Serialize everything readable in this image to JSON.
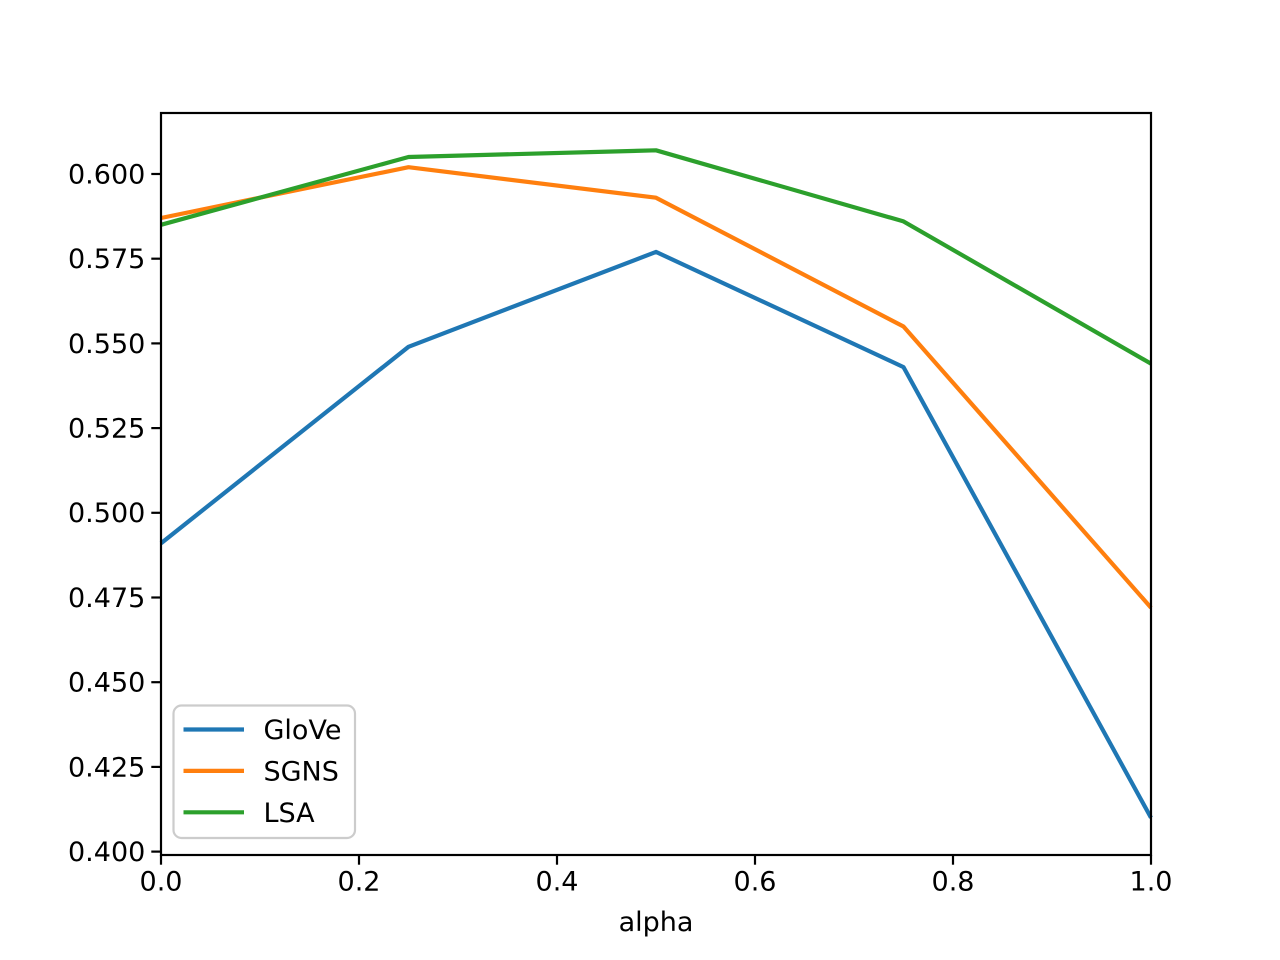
{
  "chart_data": {
    "type": "line",
    "title": "",
    "xlabel": "alpha",
    "ylabel": "",
    "x": [
      0.0,
      0.25,
      0.5,
      0.75,
      1.0
    ],
    "series": [
      {
        "name": "GloVe",
        "color": "#1f77b4",
        "values": [
          0.491,
          0.549,
          0.577,
          0.543,
          0.41
        ]
      },
      {
        "name": "SGNS",
        "color": "#ff7f0e",
        "values": [
          0.587,
          0.602,
          0.593,
          0.555,
          0.472
        ]
      },
      {
        "name": "LSA",
        "color": "#2ca02c",
        "values": [
          0.585,
          0.605,
          0.607,
          0.586,
          0.544
        ]
      }
    ],
    "xlim": [
      0.0,
      1.0
    ],
    "ylim": [
      0.399,
      0.618
    ],
    "x_ticks": {
      "values": [
        0.0,
        0.2,
        0.4,
        0.6,
        0.8,
        1.0
      ],
      "labels": [
        "0.0",
        "0.2",
        "0.4",
        "0.6",
        "0.8",
        "1.0"
      ]
    },
    "y_ticks": {
      "values": [
        0.4,
        0.425,
        0.45,
        0.475,
        0.5,
        0.525,
        0.55,
        0.575,
        0.6
      ],
      "labels": [
        "0.400",
        "0.425",
        "0.450",
        "0.475",
        "0.500",
        "0.525",
        "0.550",
        "0.575",
        "0.600"
      ]
    },
    "legend": {
      "location": "lower left",
      "entries": [
        "GloVe",
        "SGNS",
        "LSA"
      ]
    },
    "grid": false,
    "colors": {
      "axis": "#000000",
      "background": "#ffffff",
      "legend_border": "#cccccc",
      "legend_fill": "#ffffff"
    }
  }
}
